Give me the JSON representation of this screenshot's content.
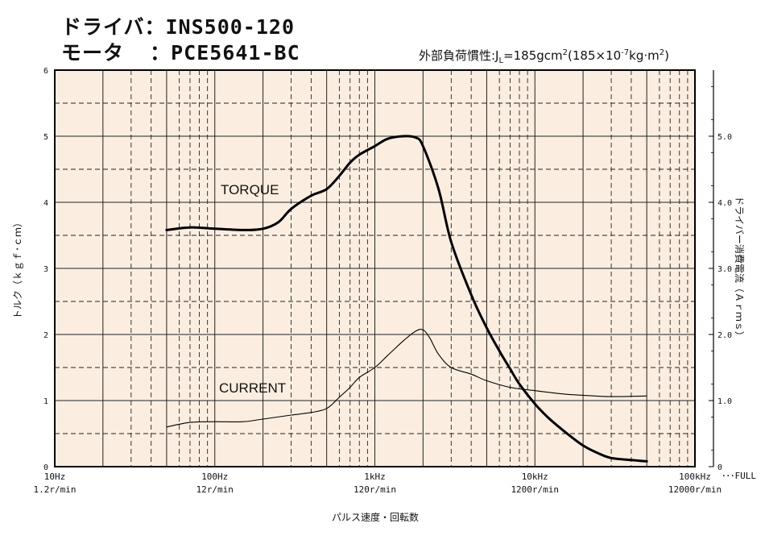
{
  "header": {
    "driver_line": "ドライバ：INS500-120",
    "motor_line": "モータ  ：PCE5641-BC",
    "inertia_prefix": "外部負荷慣性:J",
    "inertia_sub": "L",
    "inertia_mid": "=185gcm",
    "inertia_sup1": "2",
    "inertia_paren": "(185×10",
    "inertia_sup2": "-7",
    "inertia_unit": "kg·m",
    "inertia_sup3": "2",
    "inertia_close": ")"
  },
  "chart_data": {
    "type": "line",
    "x_scale": "log",
    "xlim": [
      10,
      100000
    ],
    "ylim_left": [
      0,
      6
    ],
    "ylim_right": [
      0,
      6
    ],
    "x_ticks": [
      {
        "value": 10,
        "freq": "10Hz",
        "speed": "1.2r/min"
      },
      {
        "value": 100,
        "freq": "100Hz",
        "speed": "12r/min"
      },
      {
        "value": 1000,
        "freq": "1kHz",
        "speed": "120r/min"
      },
      {
        "value": 10000,
        "freq": "10kHz",
        "speed": "1200r/min"
      },
      {
        "value": 100000,
        "freq": "100kHz",
        "speed": "12000r/min"
      }
    ],
    "x_end_note": "･･･FULL",
    "y_left_ticks": [
      "0",
      "1",
      "2",
      "3",
      "4",
      "5",
      "6"
    ],
    "y_right_ticks": [
      {
        "value": 0,
        "label": "0"
      },
      {
        "value": 1,
        "label": "1.0"
      },
      {
        "value": 2,
        "label": "2.0"
      },
      {
        "value": 3,
        "label": "3.0"
      },
      {
        "value": 4,
        "label": "4.0"
      },
      {
        "value": 5,
        "label": "5.0"
      }
    ],
    "xlabel": "パルス速度・回転数",
    "ylabel_left": "トルク（ｋｇｆ･ｃｍ）",
    "ylabel_right": "ドライバー消費電流（Ａｒｍｓ）",
    "grid": true,
    "colors": {
      "background": "#fbeee0",
      "line": "#000000",
      "grid": "#222222"
    },
    "series": [
      {
        "name": "TORQUE",
        "axis": "left",
        "x": [
          50,
          70,
          100,
          150,
          200,
          250,
          300,
          400,
          500,
          600,
          700,
          800,
          1000,
          1200,
          1500,
          1800,
          2000,
          2500,
          3000,
          4000,
          5000,
          6000,
          7000,
          8000,
          10000,
          12000,
          15000,
          20000,
          25000,
          30000,
          40000,
          50000
        ],
        "y": [
          3.58,
          3.62,
          3.6,
          3.58,
          3.6,
          3.7,
          3.9,
          4.1,
          4.2,
          4.4,
          4.6,
          4.72,
          4.85,
          4.96,
          5.0,
          4.98,
          4.85,
          4.2,
          3.4,
          2.6,
          2.1,
          1.75,
          1.48,
          1.25,
          0.95,
          0.75,
          0.55,
          0.32,
          0.2,
          0.13,
          0.1,
          0.08
        ]
      },
      {
        "name": "CURRENT",
        "axis": "right",
        "x": [
          50,
          70,
          100,
          150,
          200,
          300,
          400,
          500,
          600,
          700,
          800,
          1000,
          1200,
          1500,
          1800,
          2000,
          2200,
          2500,
          3000,
          4000,
          5000,
          7000,
          10000,
          15000,
          20000,
          30000,
          50000
        ],
        "y": [
          0.6,
          0.67,
          0.68,
          0.68,
          0.72,
          0.78,
          0.82,
          0.88,
          1.05,
          1.2,
          1.35,
          1.5,
          1.68,
          1.9,
          2.05,
          2.07,
          1.95,
          1.7,
          1.5,
          1.4,
          1.3,
          1.2,
          1.15,
          1.1,
          1.08,
          1.06,
          1.07
        ]
      }
    ]
  }
}
